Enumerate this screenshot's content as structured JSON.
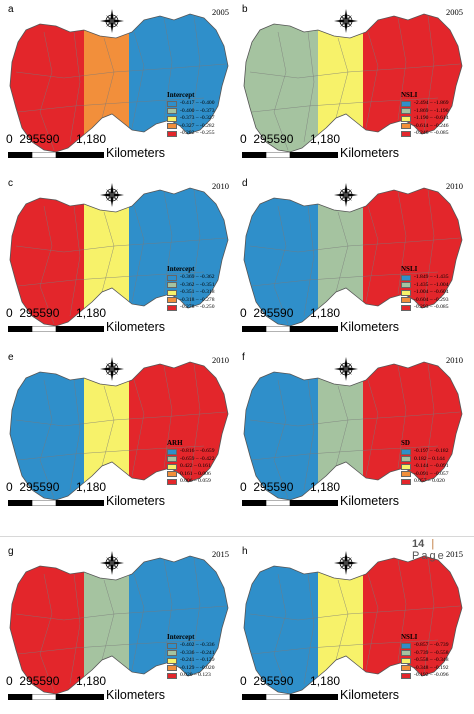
{
  "colors": {
    "blue": "#2f8fca",
    "green": "#a5c3a0",
    "yellow": "#f7f26a",
    "orange": "#f28f3b",
    "red": "#e3262b"
  },
  "scale": {
    "numbers": "0  295590     1,180",
    "units": "Kilometers"
  },
  "page_footer": {
    "page_number": "14",
    "separator": "|",
    "page_word": "Page"
  },
  "panels": [
    {
      "id": "a",
      "year": "2005",
      "legend_title": "Intercept",
      "zones": [
        "red",
        "orange",
        "blue"
      ],
      "classes": [
        {
          "color": "blue",
          "label": "-0.417 – -0.400"
        },
        {
          "color": "green",
          "label": "-0.400 – -0.373"
        },
        {
          "color": "yellow",
          "label": "-0.373 – -0.327"
        },
        {
          "color": "orange",
          "label": "-0.327 – -0.282"
        },
        {
          "color": "red",
          "label": "-0.282 – -0.255"
        }
      ]
    },
    {
      "id": "b",
      "year": "2005",
      "legend_title": "NSLI",
      "zones": [
        "green",
        "yellow",
        "red"
      ],
      "classes": [
        {
          "color": "blue",
          "label": "-2.494 – -1.869"
        },
        {
          "color": "green",
          "label": "-1.869 – -1.190"
        },
        {
          "color": "yellow",
          "label": "-1.190 – -0.614"
        },
        {
          "color": "orange",
          "label": "-0.614 – -0.246"
        },
        {
          "color": "red",
          "label": "-0.246 – -0.085"
        }
      ]
    },
    {
      "id": "c",
      "year": "2010",
      "legend_title": "Intercept",
      "zones": [
        "red",
        "yellow",
        "blue"
      ],
      "classes": [
        {
          "color": "blue",
          "label": "-0.369 – -0.362"
        },
        {
          "color": "green",
          "label": "-0.362 – -0.351"
        },
        {
          "color": "yellow",
          "label": "-0.351 – -0.318"
        },
        {
          "color": "orange",
          "label": "-0.318 – -0.278"
        },
        {
          "color": "red",
          "label": "-0.278 – -0.250"
        }
      ]
    },
    {
      "id": "d",
      "year": "2010",
      "legend_title": "NSLI",
      "zones": [
        "blue",
        "green",
        "red"
      ],
      "classes": [
        {
          "color": "blue",
          "label": "-1.849 – -1.435"
        },
        {
          "color": "green",
          "label": "-1.435 – -1.004"
        },
        {
          "color": "yellow",
          "label": "-1.004 – -0.604"
        },
        {
          "color": "orange",
          "label": "-0.604 – -0.293"
        },
        {
          "color": "red",
          "label": "-0.293 – -0.085"
        }
      ]
    },
    {
      "id": "e",
      "year": "2010",
      "legend_title": "ARH",
      "zones": [
        "blue",
        "yellow",
        "red"
      ],
      "classes": [
        {
          "color": "blue",
          "label": "-0.816 – -0.659"
        },
        {
          "color": "green",
          "label": "-0.659 – -0.422"
        },
        {
          "color": "yellow",
          "label": "0.422 – 0.161"
        },
        {
          "color": "orange",
          "label": "0.161 – 0.006"
        },
        {
          "color": "red",
          "label": "0.006 – 0.059"
        }
      ]
    },
    {
      "id": "f",
      "year": "2010",
      "legend_title": "SD",
      "zones": [
        "blue",
        "green",
        "red"
      ],
      "classes": [
        {
          "color": "blue",
          "label": "-0.197 – -0.182"
        },
        {
          "color": "green",
          "label": "0.182 – 0.144"
        },
        {
          "color": "yellow",
          "label": "-0.144 – -0.091"
        },
        {
          "color": "orange",
          "label": "-0.091 – -0.057"
        },
        {
          "color": "red",
          "label": "0.057 – 0.020"
        }
      ]
    },
    {
      "id": "g",
      "year": "2015",
      "legend_title": "Intercept",
      "zones": [
        "red",
        "green",
        "blue"
      ],
      "classes": [
        {
          "color": "blue",
          "label": "-0.402 – -0.336"
        },
        {
          "color": "green",
          "label": "-0.336 – -0.241"
        },
        {
          "color": "yellow",
          "label": "-0.241 – -0.129"
        },
        {
          "color": "orange",
          "label": "-0.129 – -0.020"
        },
        {
          "color": "red",
          "label": "0.020 – 0.123"
        }
      ]
    },
    {
      "id": "h",
      "year": "2015",
      "legend_title": "NSLI",
      "zones": [
        "blue",
        "yellow",
        "red"
      ],
      "classes": [
        {
          "color": "blue",
          "label": "-0.857 – -0.739"
        },
        {
          "color": "green",
          "label": "-0.739 – -0.558"
        },
        {
          "color": "yellow",
          "label": "-0.558 – -0.348"
        },
        {
          "color": "orange",
          "label": "-0.348 – -0.192"
        },
        {
          "color": "red",
          "label": "-0.192 – -0.096"
        }
      ]
    }
  ]
}
